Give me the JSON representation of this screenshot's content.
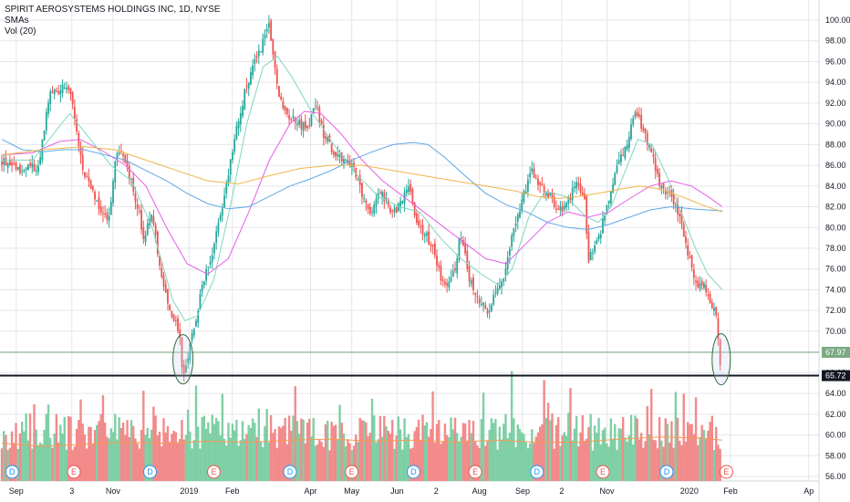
{
  "header": {
    "title": "SPIRIT AEROSYSTEMS HOLDINGS INC, 1D, NYSE",
    "indicator_1": "SMAs",
    "indicator_2": "Vol (20)"
  },
  "colors": {
    "up": "#26a69a",
    "down": "#ef5350",
    "vol_up": "#7fcfa5",
    "vol_down": "#f28a8a",
    "sma_teal": "#7fd6c0",
    "sma_magenta": "#e65ee6",
    "sma_blue": "#5fa8e6",
    "sma_orange": "#f0b54a",
    "vol_ma": "#f59a52",
    "dividend": "#2196f3",
    "earnings": "#ef5350",
    "grid": "#e6e6ea"
  },
  "price_tags": [
    {
      "label": "67.97",
      "value": 67.97,
      "color": "#7aa982"
    },
    {
      "label": "65.72",
      "value": 65.72,
      "color": "#131722"
    }
  ],
  "events": [
    {
      "type": "dividend",
      "label": "D",
      "time": 0.5
    },
    {
      "type": "earnings",
      "label": "E",
      "time": 3.5
    },
    {
      "type": "dividend",
      "label": "D",
      "time": 7.2
    },
    {
      "type": "earnings",
      "label": "E",
      "time": 10.3
    },
    {
      "type": "dividend",
      "label": "D",
      "time": 14
    },
    {
      "type": "earnings",
      "label": "E",
      "time": 17
    },
    {
      "type": "dividend",
      "label": "D",
      "time": 20
    },
    {
      "type": "earnings",
      "label": "E",
      "time": 23
    },
    {
      "type": "dividend",
      "label": "D",
      "time": 26
    },
    {
      "type": "earnings",
      "label": "E",
      "time": 29.2
    },
    {
      "type": "dividend",
      "label": "D",
      "time": 32.3
    },
    {
      "type": "earnings",
      "label": "E",
      "time": 35.2
    }
  ],
  "chart_data": {
    "type": "candlestick",
    "title": "SPIRIT AEROSYSTEMS HOLDINGS INC, 1D, NYSE",
    "xlabel": "",
    "ylabel": "",
    "ylim": [
      55.5,
      101
    ],
    "grid": true,
    "x_ticks": [
      {
        "label": "Sep",
        "t": 0.7
      },
      {
        "label": "3",
        "t": 3.4
      },
      {
        "label": "Nov",
        "t": 5.4
      },
      {
        "label": "2019",
        "t": 9.1
      },
      {
        "label": "Feb",
        "t": 11.2
      },
      {
        "label": "Apr",
        "t": 15.0
      },
      {
        "label": "May",
        "t": 17.0
      },
      {
        "label": "Jun",
        "t": 19.2
      },
      {
        "label": "2",
        "t": 21.1
      },
      {
        "label": "Aug",
        "t": 23.2
      },
      {
        "label": "Sep",
        "t": 25.3
      },
      {
        "label": "2",
        "t": 27.2
      },
      {
        "label": "Nov",
        "t": 29.4
      },
      {
        "label": "2020",
        "t": 33.4
      },
      {
        "label": "Feb",
        "t": 35.4
      },
      {
        "label": "Ap",
        "t": 39.2
      }
    ],
    "y_ticks": [
      56,
      58,
      60,
      62,
      64,
      66,
      68,
      70,
      72,
      74,
      76,
      78,
      80,
      82,
      84,
      86,
      88,
      90,
      92,
      94,
      96,
      98,
      100
    ],
    "y_tick_labels": [
      "56.00",
      "58.00",
      "60.00",
      "62.00",
      "64.00",
      "66.00",
      "68.00",
      "70.00",
      "72.00",
      "74.00",
      "76.00",
      "78.00",
      "80.00",
      "82.00",
      "84.00",
      "86.00",
      "88.00",
      "90.00",
      "92.00",
      "94.00",
      "96.00",
      "98.00",
      "100.00"
    ],
    "price_path": [
      [
        0,
        86.5
      ],
      [
        1,
        85.5
      ],
      [
        1.8,
        86
      ],
      [
        2.3,
        93
      ],
      [
        3,
        93.5
      ],
      [
        3.4,
        92.5
      ],
      [
        3.9,
        86
      ],
      [
        4.3,
        84
      ],
      [
        4.9,
        81
      ],
      [
        5.2,
        80.5
      ],
      [
        5.5,
        86.5
      ],
      [
        5.8,
        87.5
      ],
      [
        6.3,
        84.5
      ],
      [
        6.7,
        81
      ],
      [
        6.9,
        79
      ],
      [
        7.3,
        81.5
      ],
      [
        7.7,
        76
      ],
      [
        8.1,
        72
      ],
      [
        8.6,
        70
      ],
      [
        8.8,
        65.72
      ],
      [
        9.3,
        70
      ],
      [
        9.7,
        74
      ],
      [
        10.3,
        78
      ],
      [
        10.9,
        84
      ],
      [
        11.3,
        88.5
      ],
      [
        11.8,
        93
      ],
      [
        12.3,
        96
      ],
      [
        13.0,
        99.5
      ],
      [
        13.4,
        93
      ],
      [
        13.8,
        91
      ],
      [
        14.4,
        90
      ],
      [
        14.9,
        89.5
      ],
      [
        15.2,
        92.5
      ],
      [
        15.6,
        89
      ],
      [
        16.2,
        87
      ],
      [
        16.6,
        86.5
      ],
      [
        17.1,
        86
      ],
      [
        17.5,
        83
      ],
      [
        17.9,
        81
      ],
      [
        18.4,
        83.5
      ],
      [
        18.9,
        81.5
      ],
      [
        19.3,
        82
      ],
      [
        19.8,
        84
      ],
      [
        20.2,
        80
      ],
      [
        20.7,
        79
      ],
      [
        21.0,
        77.5
      ],
      [
        21.5,
        74
      ],
      [
        22.0,
        76
      ],
      [
        22.3,
        79.5
      ],
      [
        22.7,
        75
      ],
      [
        23.1,
        73
      ],
      [
        23.6,
        72
      ],
      [
        24.0,
        73.5
      ],
      [
        24.4,
        75.5
      ],
      [
        24.8,
        79.5
      ],
      [
        25.2,
        82
      ],
      [
        25.7,
        85.5
      ],
      [
        26.1,
        84
      ],
      [
        26.6,
        83
      ],
      [
        27.2,
        81.5
      ],
      [
        27.9,
        84
      ],
      [
        28.3,
        83
      ],
      [
        28.5,
        77
      ],
      [
        29.0,
        79
      ],
      [
        29.5,
        83
      ],
      [
        29.9,
        86
      ],
      [
        30.4,
        88
      ],
      [
        30.8,
        91.5
      ],
      [
        31.2,
        89
      ],
      [
        31.6,
        87
      ],
      [
        32.0,
        84
      ],
      [
        32.5,
        83
      ],
      [
        33.0,
        80.5
      ],
      [
        33.4,
        77
      ],
      [
        33.8,
        74
      ],
      [
        34.1,
        74.5
      ],
      [
        34.4,
        73
      ],
      [
        34.7,
        72
      ],
      [
        34.9,
        67
      ]
    ],
    "series": [
      {
        "name": "",
        "color": "#7fd6c0",
        "points": [
          [
            0,
            86.5
          ],
          [
            1.5,
            86.5
          ],
          [
            2.5,
            89
          ],
          [
            3.3,
            91
          ],
          [
            4.3,
            88.5
          ],
          [
            5.3,
            86
          ],
          [
            6.3,
            84.5
          ],
          [
            7.3,
            80
          ],
          [
            8.3,
            73
          ],
          [
            8.9,
            71
          ],
          [
            9.5,
            71.5
          ],
          [
            10.3,
            75
          ],
          [
            11.1,
            82
          ],
          [
            11.9,
            90
          ],
          [
            12.7,
            95.5
          ],
          [
            13.4,
            96.5
          ],
          [
            14.1,
            94.5
          ],
          [
            15.1,
            91
          ],
          [
            16.3,
            87.5
          ],
          [
            17.3,
            85
          ],
          [
            18.3,
            83
          ],
          [
            19.3,
            82
          ],
          [
            20.3,
            81.5
          ],
          [
            21.3,
            79
          ],
          [
            22.3,
            77
          ],
          [
            23.3,
            75.5
          ],
          [
            24.1,
            74.5
          ],
          [
            24.8,
            76
          ],
          [
            25.6,
            81
          ],
          [
            26.4,
            83.5
          ],
          [
            27.4,
            83
          ],
          [
            28.4,
            81
          ],
          [
            29.0,
            80.5
          ],
          [
            29.6,
            82
          ],
          [
            30.3,
            85.5
          ],
          [
            30.9,
            88.5
          ],
          [
            31.6,
            88
          ],
          [
            32.3,
            85
          ],
          [
            33.1,
            81
          ],
          [
            33.7,
            78
          ],
          [
            34.3,
            75.5
          ],
          [
            35.0,
            74
          ]
        ]
      },
      {
        "name": "",
        "color": "#e65ee6",
        "points": [
          [
            0,
            87
          ],
          [
            1.5,
            87.2
          ],
          [
            2.8,
            88.3
          ],
          [
            3.8,
            88.5
          ],
          [
            4.8,
            87.5
          ],
          [
            6.0,
            86
          ],
          [
            7.0,
            84
          ],
          [
            8.0,
            80
          ],
          [
            9.0,
            76.5
          ],
          [
            10.0,
            75.5
          ],
          [
            11.0,
            77
          ],
          [
            12.0,
            81.5
          ],
          [
            13.0,
            86.5
          ],
          [
            14.0,
            90
          ],
          [
            14.7,
            91.2
          ],
          [
            15.5,
            91
          ],
          [
            16.5,
            89
          ],
          [
            17.5,
            86.5
          ],
          [
            18.5,
            84.5
          ],
          [
            19.5,
            83
          ],
          [
            20.5,
            81.5
          ],
          [
            21.5,
            80
          ],
          [
            22.5,
            78.5
          ],
          [
            23.5,
            77
          ],
          [
            24.5,
            76.5
          ],
          [
            25.5,
            78.5
          ],
          [
            26.5,
            80.5
          ],
          [
            27.5,
            81.5
          ],
          [
            28.5,
            81
          ],
          [
            29.5,
            81.5
          ],
          [
            30.5,
            82.8
          ],
          [
            31.5,
            84
          ],
          [
            32.5,
            84.5
          ],
          [
            33.5,
            84
          ],
          [
            34.3,
            83
          ],
          [
            35.0,
            82
          ]
        ]
      },
      {
        "name": "",
        "color": "#5fa8e6",
        "points": [
          [
            0,
            88.5
          ],
          [
            1.0,
            87.5
          ],
          [
            2.0,
            87.3
          ],
          [
            3.0,
            87.5
          ],
          [
            4.0,
            87.5
          ],
          [
            5.0,
            87
          ],
          [
            6.0,
            86.5
          ],
          [
            7.0,
            85.5
          ],
          [
            8.0,
            84.5
          ],
          [
            9.0,
            83.3
          ],
          [
            10.0,
            82.3
          ],
          [
            11.0,
            81.8
          ],
          [
            12.0,
            82
          ],
          [
            13.0,
            83
          ],
          [
            14.0,
            84
          ],
          [
            15.0,
            84.7
          ],
          [
            16.0,
            85.5
          ],
          [
            17.0,
            86.5
          ],
          [
            18.0,
            87.3
          ],
          [
            19.0,
            88
          ],
          [
            20.0,
            88.2
          ],
          [
            20.7,
            88
          ],
          [
            21.5,
            86.8
          ],
          [
            22.5,
            85
          ],
          [
            23.5,
            83.3
          ],
          [
            24.5,
            82.2
          ],
          [
            25.5,
            81.5
          ],
          [
            26.5,
            80.5
          ],
          [
            27.5,
            80
          ],
          [
            28.5,
            79.8
          ],
          [
            29.5,
            80.3
          ],
          [
            30.5,
            81
          ],
          [
            31.5,
            81.7
          ],
          [
            32.5,
            82
          ],
          [
            33.5,
            81.8
          ],
          [
            35.0,
            81.6
          ]
        ]
      },
      {
        "name": "",
        "color": "#f0b54a",
        "points": [
          [
            0,
            87
          ],
          [
            2.0,
            87.5
          ],
          [
            4.0,
            87.8
          ],
          [
            5.5,
            87.5
          ],
          [
            7.0,
            86.5
          ],
          [
            8.5,
            85.5
          ],
          [
            10.0,
            84.5
          ],
          [
            11.5,
            84.2
          ],
          [
            13.0,
            85
          ],
          [
            14.5,
            85.7
          ],
          [
            16.0,
            86
          ],
          [
            17.5,
            86
          ],
          [
            19.0,
            85.5
          ],
          [
            20.5,
            85
          ],
          [
            22.0,
            84.5
          ],
          [
            23.5,
            84
          ],
          [
            25.0,
            83.5
          ],
          [
            26.0,
            83
          ],
          [
            27.0,
            82.8
          ],
          [
            28.0,
            83
          ],
          [
            29.0,
            83.3
          ],
          [
            30.0,
            83.7
          ],
          [
            31.0,
            84
          ],
          [
            32.0,
            83.7
          ],
          [
            33.0,
            83
          ],
          [
            34.0,
            82.2
          ],
          [
            35.0,
            81.5
          ]
        ]
      }
    ],
    "vol_ma": [
      [
        0,
        59.2
      ],
      [
        2,
        58.9
      ],
      [
        4,
        59.1
      ],
      [
        6,
        59.3
      ],
      [
        8,
        59.2
      ],
      [
        10,
        59.4
      ],
      [
        12,
        59.3
      ],
      [
        14,
        59.5
      ],
      [
        16,
        59.6
      ],
      [
        18,
        59.4
      ],
      [
        20,
        59.5
      ],
      [
        22,
        59.3
      ],
      [
        24,
        59.5
      ],
      [
        26,
        59.3
      ],
      [
        28,
        59.3
      ],
      [
        30,
        59.6
      ],
      [
        32,
        59.8
      ],
      [
        34,
        59.7
      ],
      [
        35,
        59.5
      ]
    ]
  }
}
